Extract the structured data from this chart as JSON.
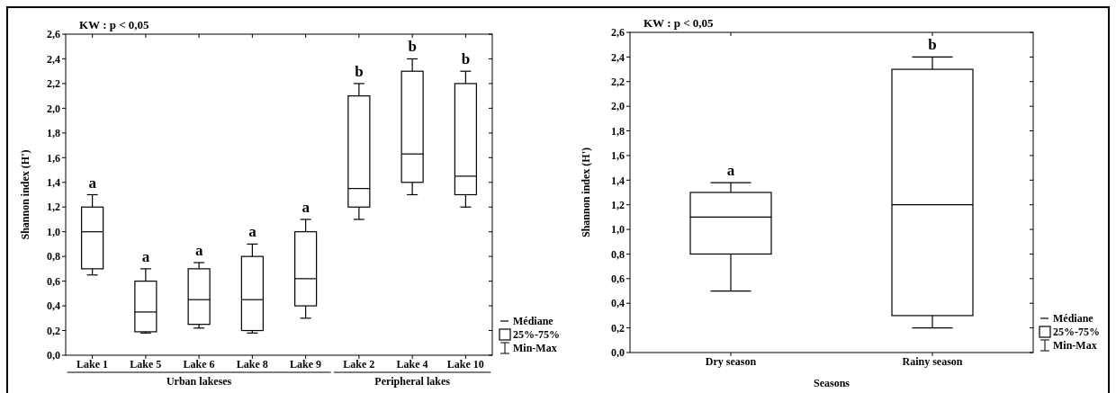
{
  "chart_data": [
    {
      "type": "box",
      "ylabel": "Shannon index (H')",
      "categories": [
        "Lake 1",
        "Lake 5",
        "Lake 6",
        "Lake 8",
        "Lake 9",
        "Lake 2",
        "Lake 4",
        "Lake 10"
      ],
      "boxes": [
        {
          "low": 0.65,
          "q1": 0.7,
          "median": 1.0,
          "q3": 1.2,
          "high": 1.3
        },
        {
          "low": 0.18,
          "q1": 0.19,
          "median": 0.35,
          "q3": 0.6,
          "high": 0.7
        },
        {
          "low": 0.22,
          "q1": 0.25,
          "median": 0.45,
          "q3": 0.7,
          "high": 0.75
        },
        {
          "low": 0.18,
          "q1": 0.2,
          "median": 0.45,
          "q3": 0.8,
          "high": 0.9
        },
        {
          "low": 0.3,
          "q1": 0.4,
          "median": 0.62,
          "q3": 1.0,
          "high": 1.1
        },
        {
          "low": 1.1,
          "q1": 1.2,
          "median": 1.35,
          "q3": 2.1,
          "high": 2.2
        },
        {
          "low": 1.3,
          "q1": 1.4,
          "median": 1.63,
          "q3": 2.3,
          "high": 2.4
        },
        {
          "low": 1.2,
          "q1": 1.3,
          "median": 1.45,
          "q3": 2.2,
          "high": 2.3
        }
      ],
      "ylim": [
        0,
        2.6
      ],
      "yticks": [
        {
          "value": 0,
          "label": "0,0"
        },
        {
          "value": 0.2,
          "label": "0,2"
        },
        {
          "value": 0.4,
          "label": "0,4"
        },
        {
          "value": 0.6,
          "label": "0,6"
        },
        {
          "value": 0.8,
          "label": "0,8"
        },
        {
          "value": 1.0,
          "label": "1,0"
        },
        {
          "value": 1.2,
          "label": "1,2"
        },
        {
          "value": 1.4,
          "label": "1,4"
        },
        {
          "value": 1.6,
          "label": "1,6"
        },
        {
          "value": 1.8,
          "label": "1,8"
        },
        {
          "value": 2.0,
          "label": "2,0"
        },
        {
          "value": 2.2,
          "label": "2,2"
        },
        {
          "value": 2.4,
          "label": "2,4"
        },
        {
          "value": 2.6,
          "label": "2,6"
        }
      ],
      "annotations": [
        "KW : p < 0,05",
        "Urban lakeses",
        "Peripheral lakes",
        "Médiane",
        "25%-75%",
        "Min-Max",
        {
          "text": "a",
          "x": "Lake 1",
          "y": 1.3
        },
        {
          "text": "a",
          "x": "Lake 5",
          "y": 0.7
        },
        {
          "text": "a",
          "x": "Lake 6",
          "y": 0.75
        },
        {
          "text": "a",
          "x": "Lake 8",
          "y": 0.9
        },
        {
          "text": "a",
          "x": "Lake 9",
          "y": 1.1
        },
        {
          "text": "b",
          "x": "Lake 2",
          "y": 2.2
        },
        {
          "text": "b",
          "x": "Lake 4",
          "y": 2.4
        },
        {
          "text": "b",
          "x": "Lake 10",
          "y": 2.3
        }
      ]
    },
    {
      "type": "box",
      "ylabel": "Shannon index (H')",
      "xlabel": "Seasons",
      "categories": [
        "Dry season",
        "Rainy season"
      ],
      "boxes": [
        {
          "low": 0.5,
          "q1": 0.8,
          "median": 1.1,
          "q3": 1.3,
          "high": 1.38
        },
        {
          "low": 0.2,
          "q1": 0.3,
          "median": 1.2,
          "q3": 2.3,
          "high": 2.4
        }
      ],
      "ylim": [
        0,
        2.6
      ],
      "yticks": [
        {
          "value": 0,
          "label": "0,0"
        },
        {
          "value": 0.2,
          "label": "0,2"
        },
        {
          "value": 0.4,
          "label": "0,4"
        },
        {
          "value": 0.6,
          "label": "0,6"
        },
        {
          "value": 0.8,
          "label": "0,8"
        },
        {
          "value": 1.0,
          "label": "1,0"
        },
        {
          "value": 1.2,
          "label": "1,2"
        },
        {
          "value": 1.4,
          "label": "1,4"
        },
        {
          "value": 1.6,
          "label": "1,6"
        },
        {
          "value": 1.8,
          "label": "1,8"
        },
        {
          "value": 2.0,
          "label": "2,0"
        },
        {
          "value": 2.2,
          "label": "2,2"
        },
        {
          "value": 2.4,
          "label": "2,4"
        },
        {
          "value": 2.6,
          "label": "2,6"
        }
      ],
      "annotations": [
        "KW : p < 0,05",
        "Médiane",
        "25%-75%",
        "Min-Max",
        {
          "text": "a",
          "x": "Dry season",
          "y": 1.38
        },
        {
          "text": "b",
          "x": "Rainy season",
          "y": 2.4
        }
      ]
    }
  ]
}
